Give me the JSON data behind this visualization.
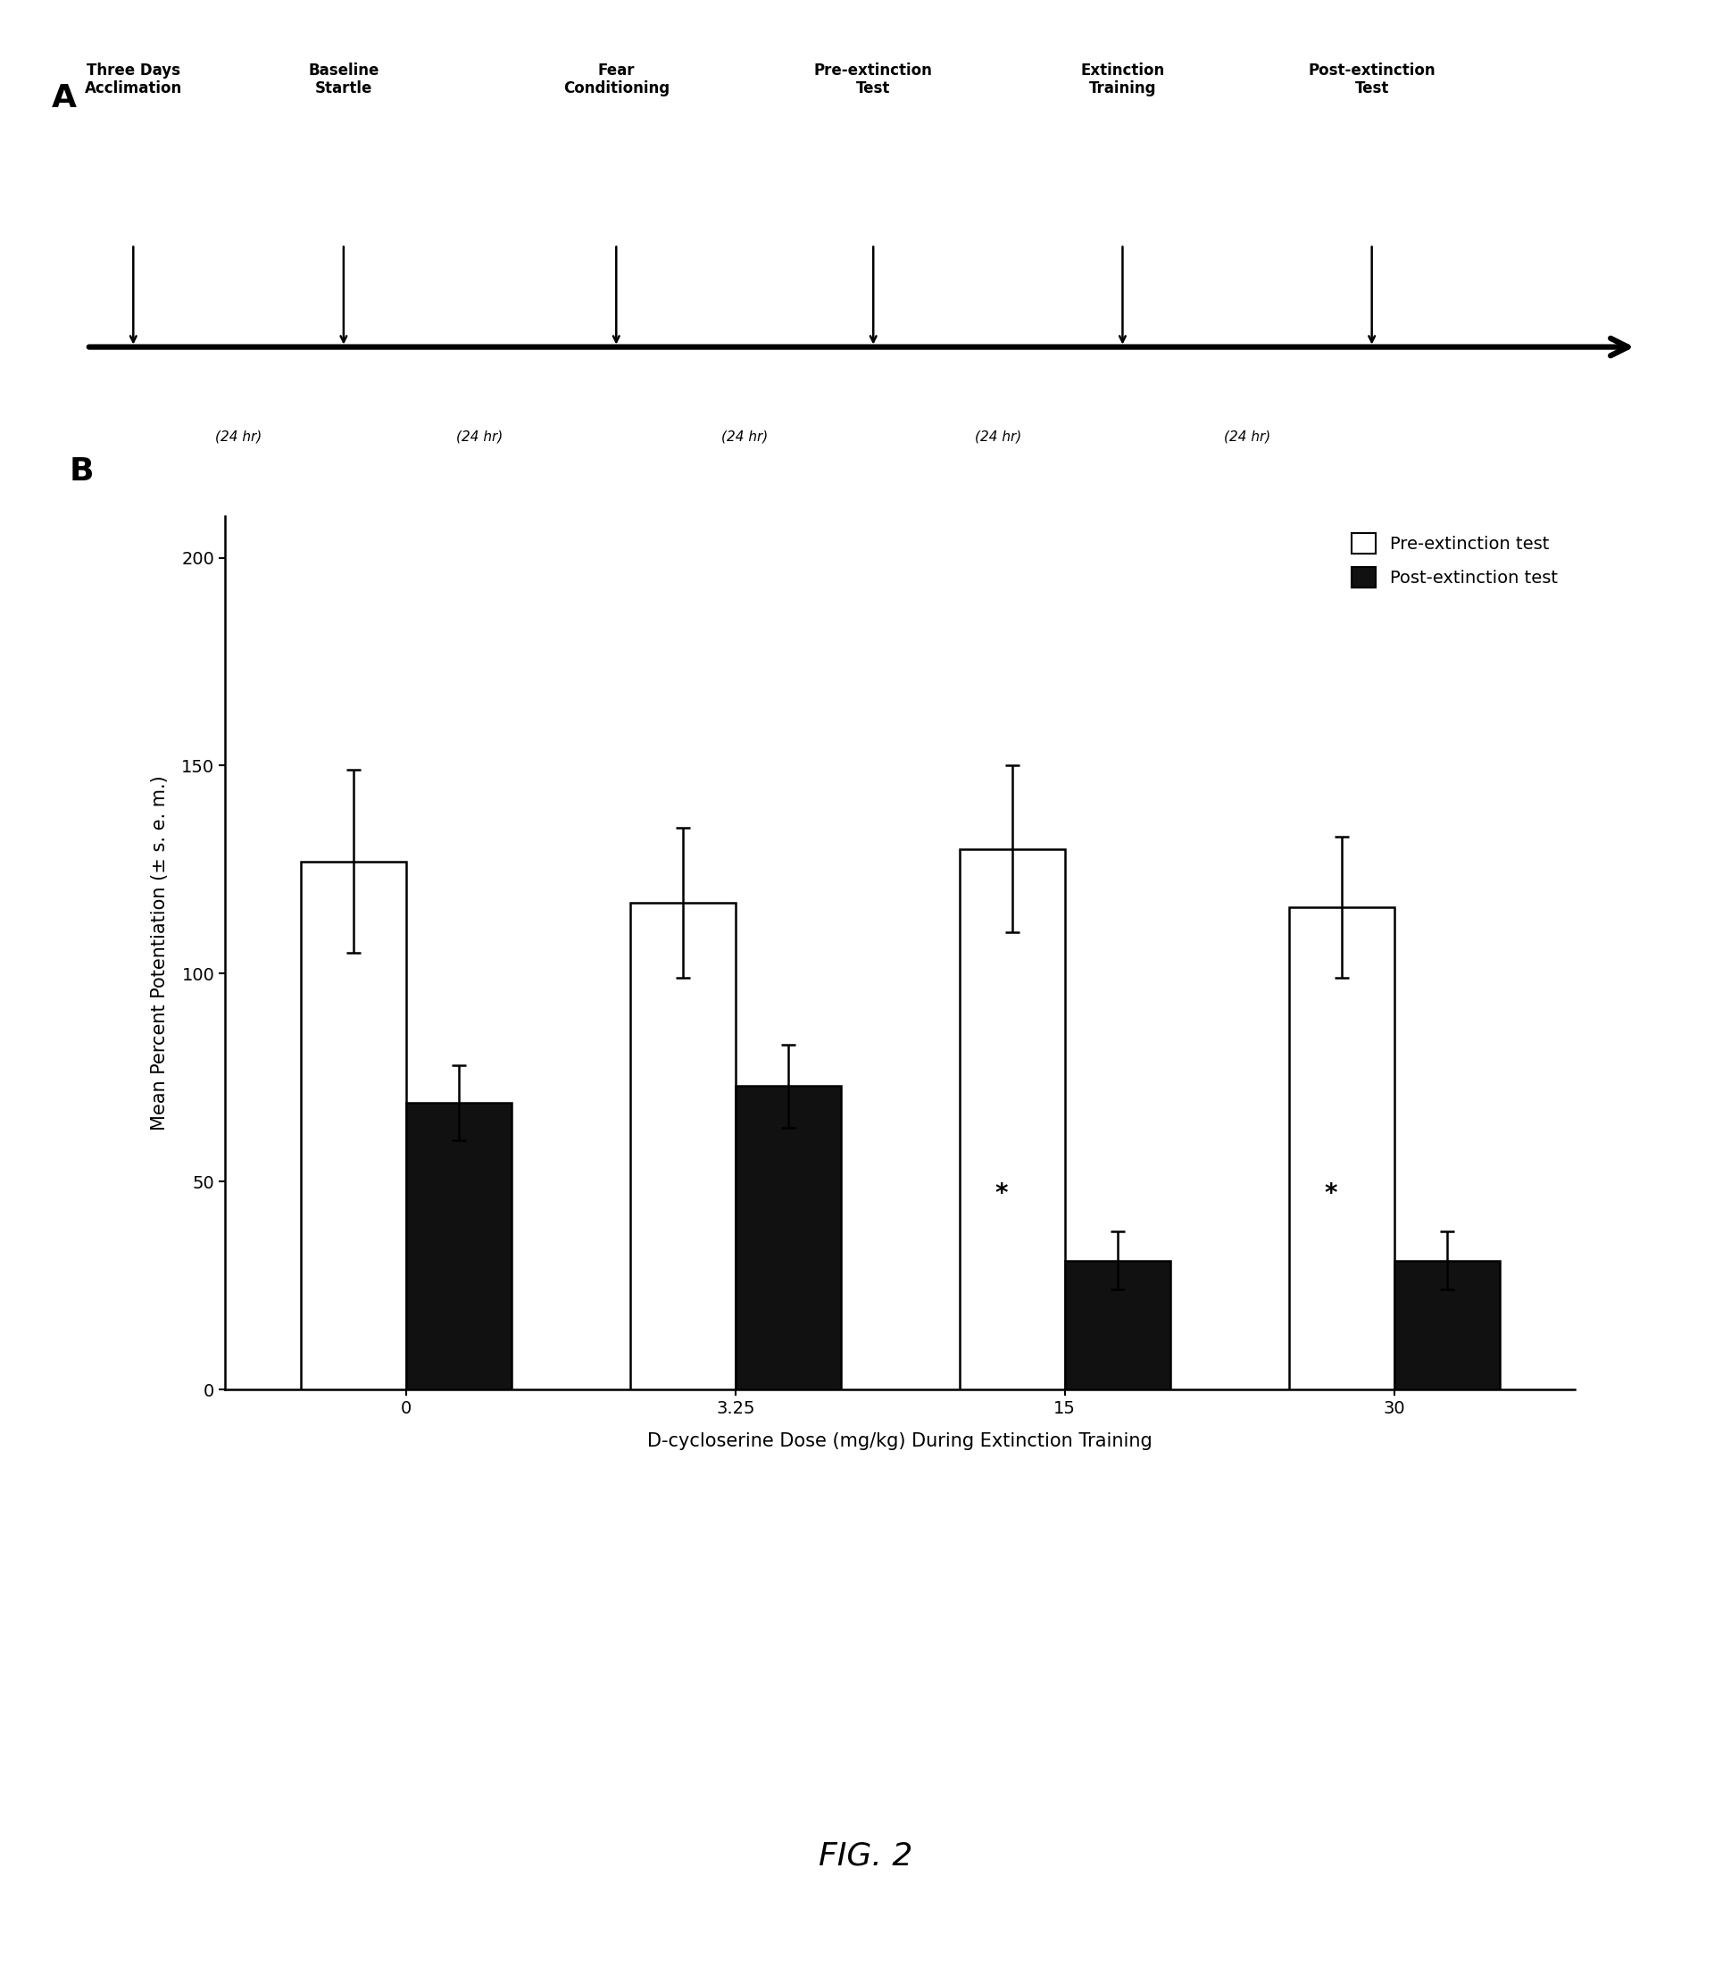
{
  "panel_A_label": "A",
  "panel_B_label": "B",
  "timeline_labels": [
    "Three Days\nAcclimation",
    "Baseline\nStartle",
    "Fear\nConditioning",
    "Pre-extinction\nTest",
    "Extinction\nTraining",
    "Post-extinction\nTest"
  ],
  "timeline_intervals": [
    "(24 hr)",
    "(24 hr)",
    "(24 hr)",
    "(24 hr)",
    "(24 hr)"
  ],
  "doses": [
    0,
    3.25,
    15,
    30
  ],
  "dose_labels": [
    "0",
    "3.25",
    "15",
    "30"
  ],
  "pre_values": [
    127,
    117,
    130,
    116
  ],
  "pre_errors": [
    22,
    18,
    20,
    17
  ],
  "post_values": [
    69,
    73,
    31,
    31
  ],
  "post_errors": [
    9,
    10,
    7,
    7
  ],
  "significance": [
    false,
    false,
    true,
    true
  ],
  "ylabel": "Mean Percent Potentiation (± s. e. m.)",
  "xlabel": "D-cycloserine Dose (mg/kg) During Extinction Training",
  "ylim": [
    0,
    210
  ],
  "yticks": [
    0,
    50,
    100,
    150,
    200
  ],
  "legend_pre": "Pre-extinction test",
  "legend_post": "Post-extinction test",
  "fig_label": "FIG. 2",
  "bar_width": 0.32,
  "background_color": "#ffffff",
  "bar_color_pre": "#ffffff",
  "bar_color_post": "#111111",
  "bar_edge_color": "#000000",
  "label_fontsize": 15,
  "tick_fontsize": 14,
  "legend_fontsize": 14,
  "panel_label_fontsize": 26,
  "fig_label_fontsize": 26,
  "timeline_label_fontsize": 12,
  "timeline_interval_fontsize": 11
}
